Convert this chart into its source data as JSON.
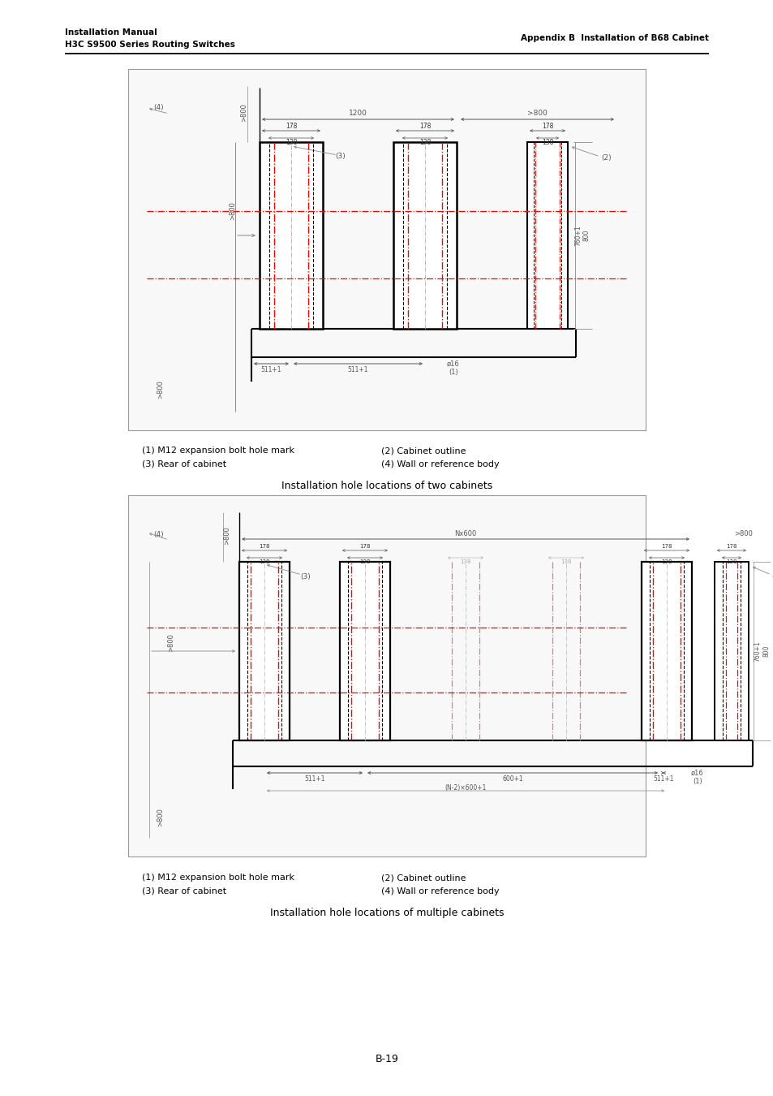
{
  "header_left_line1": "Installation Manual",
  "header_left_line2": "H3C S9500 Series Routing Switches",
  "header_right": "Appendix B  Installation of B68 Cabinet",
  "fig1_caption_left1": "(1) M12 expansion bolt hole mark",
  "fig1_caption_left2": "(3) Rear of cabinet",
  "fig1_caption_right1": "(2) Cabinet outline",
  "fig1_caption_right2": "(4) Wall or reference body",
  "fig1_title": "Installation hole locations of two cabinets",
  "fig2_caption_left1": "(1) M12 expansion bolt hole mark",
  "fig2_caption_left2": "(3) Rear of cabinet",
  "fig2_caption_right1": "(2) Cabinet outline",
  "fig2_caption_right2": "(4) Wall or reference body",
  "fig2_title": "Installation hole locations of multiple cabinets",
  "page_number": "B-19",
  "bg_color": "#ffffff"
}
